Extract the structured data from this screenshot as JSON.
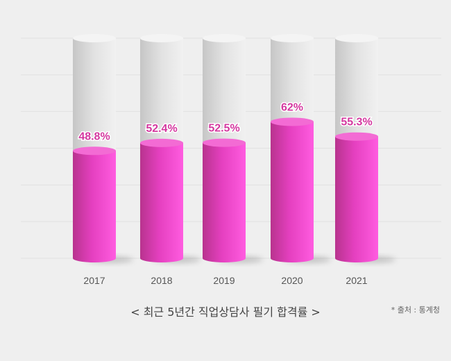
{
  "chart_data": {
    "type": "bar",
    "categories": [
      "2017",
      "2018",
      "2019",
      "2020",
      "2021"
    ],
    "values": [
      48.8,
      52.4,
      52.5,
      62,
      55.3
    ],
    "value_labels": [
      "48.8%",
      "52.4%",
      "52.5%",
      "62%",
      "55.3%"
    ],
    "ylim": [
      0,
      100
    ],
    "grid": true,
    "colors": {
      "bar": "#e63fc0",
      "bar_top": "#f36bd4",
      "value_label": "#d4379f",
      "track": "#dadada",
      "track_top": "#f4f4f4",
      "tick_label": "#555555"
    }
  },
  "caption": "< 최근 5년간 직업상담사 필기 합격률 >",
  "source": "* 출처 : 통계청"
}
